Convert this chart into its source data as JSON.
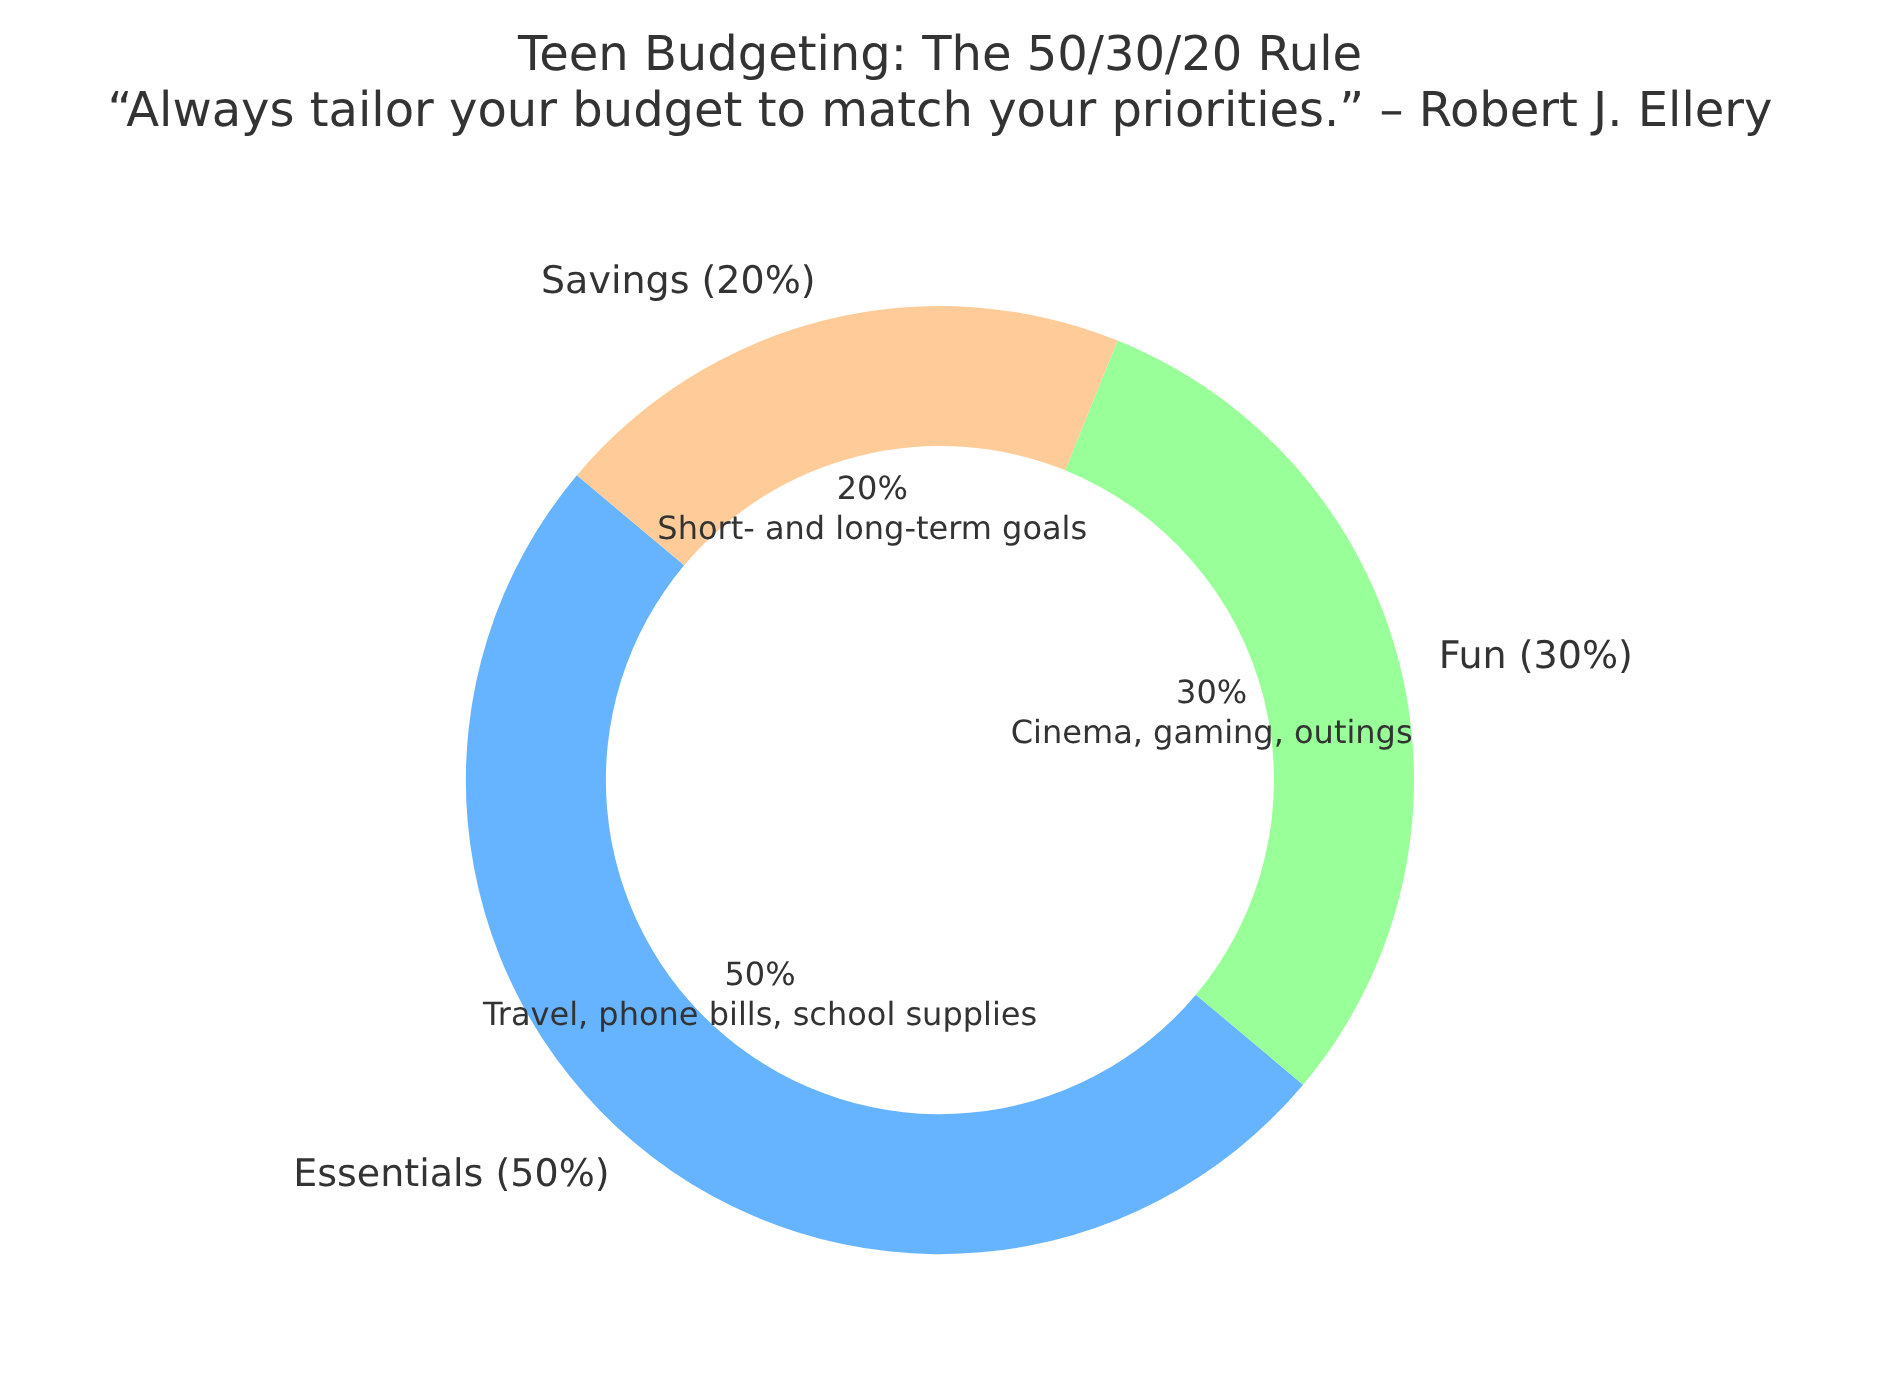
{
  "chart_data": {
    "type": "donut",
    "title": "Teen Budgeting: The 50/30/20 Rule",
    "subtitle": "“Always tailor your budget to match your priorities.” – Robert J. Ellery",
    "categories": [
      "Essentials (50%)",
      "Fun (30%)",
      "Savings (20%)"
    ],
    "values": [
      50,
      30,
      20
    ],
    "colors": [
      "#66b3ff",
      "#99ff99",
      "#ffcc99"
    ],
    "value_labels": [
      "50%\nTravel, phone bills, school supplies",
      "30%\nCinema, gaming, outings",
      "20%\nShort- and long-term goals"
    ],
    "legend": false
  }
}
